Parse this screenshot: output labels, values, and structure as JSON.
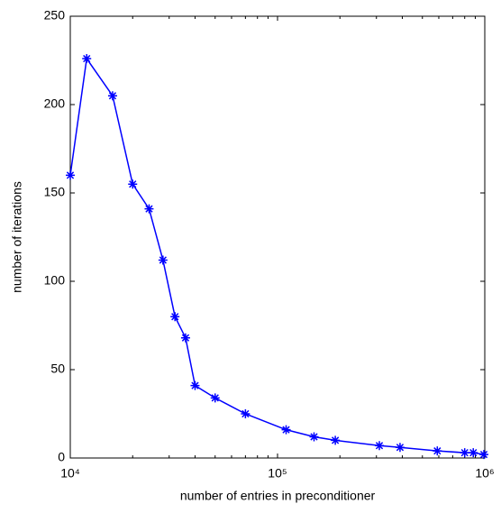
{
  "chart_data": {
    "type": "line",
    "xlabel": "number of entries in preconditioner",
    "ylabel": "number of iterations",
    "xscale": "log",
    "x": [
      10000,
      12000,
      16000,
      20000,
      24000,
      28000,
      32000,
      36000,
      40000,
      50000,
      70000,
      110000,
      150000,
      190000,
      310000,
      390000,
      590000,
      800000,
      880000,
      990000
    ],
    "series": [
      {
        "name": "iterations",
        "color": "#0000ff",
        "marker": "asterisk",
        "values": [
          160,
          226,
          205,
          155,
          141,
          112,
          80,
          68,
          41,
          34,
          25,
          16,
          12,
          10,
          7,
          6,
          4,
          3,
          3,
          2
        ]
      }
    ],
    "xlim": [
      10000,
      1000000
    ],
    "xticks": [
      {
        "value": 10000,
        "label": "10⁴"
      },
      {
        "value": 100000,
        "label": "10⁵"
      },
      {
        "value": 1000000,
        "label": "10⁶"
      }
    ],
    "minor_xticks": [
      20000,
      30000,
      40000,
      50000,
      60000,
      70000,
      80000,
      90000,
      200000,
      300000,
      400000,
      500000,
      600000,
      700000,
      800000,
      900000
    ],
    "ylim": [
      0,
      250
    ],
    "yticks": [
      0,
      50,
      100,
      150,
      200,
      250
    ],
    "grid": false
  }
}
